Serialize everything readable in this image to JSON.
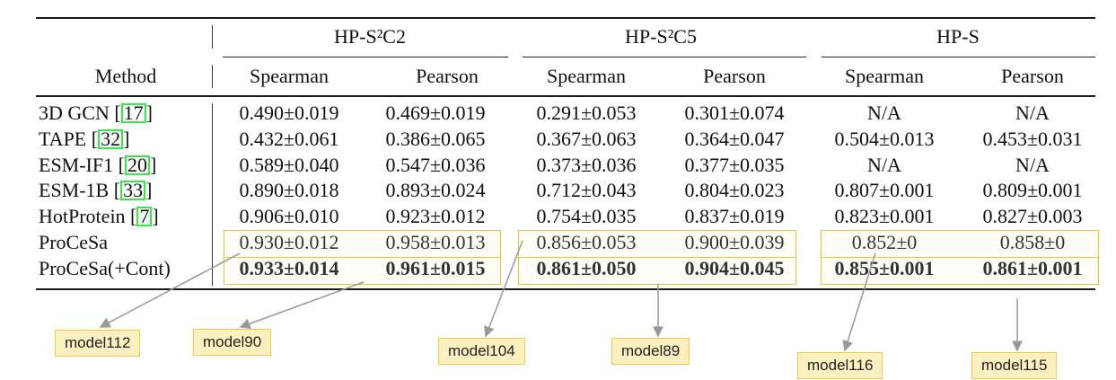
{
  "table": {
    "method_header": "Method",
    "groups": [
      "HP-S²C2",
      "HP-S²C5",
      "HP-S"
    ],
    "subheaders": [
      "Spearman",
      "Pearson",
      "Spearman",
      "Pearson",
      "Spearman",
      "Pearson"
    ],
    "rows": [
      {
        "name": "3D GCN [",
        "cite": "17",
        "suffix": "]",
        "values": [
          "0.490±0.019",
          "0.469±0.019",
          "0.291±0.053",
          "0.301±0.074",
          "N/A",
          "N/A"
        ],
        "bold": false
      },
      {
        "name": "TAPE [",
        "cite": "32",
        "suffix": "]",
        "values": [
          "0.432±0.061",
          "0.386±0.065",
          "0.367±0.063",
          "0.364±0.047",
          "0.504±0.013",
          "0.453±0.031"
        ],
        "bold": false
      },
      {
        "name": "ESM-IF1 [",
        "cite": "20",
        "suffix": "]",
        "values": [
          "0.589±0.040",
          "0.547±0.036",
          "0.373±0.036",
          "0.377±0.035",
          "N/A",
          "N/A"
        ],
        "bold": false
      },
      {
        "name": "ESM-1B [",
        "cite": "33",
        "suffix": "]",
        "values": [
          "0.890±0.018",
          "0.893±0.024",
          "0.712±0.043",
          "0.804±0.023",
          "0.807±0.001",
          "0.809±0.001"
        ],
        "bold": false
      },
      {
        "name": "HotProtein [",
        "cite": "7",
        "suffix": "]",
        "values": [
          "0.906±0.010",
          "0.923±0.012",
          "0.754±0.035",
          "0.837±0.019",
          "0.823±0.001",
          "0.827±0.003"
        ],
        "bold": false
      },
      {
        "name": "ProCeSa",
        "cite": "",
        "suffix": "",
        "values": [
          "0.930±0.012",
          "0.958±0.013",
          "0.856±0.053",
          "0.900±0.039",
          "0.852±0",
          "0.858±0"
        ],
        "bold": false
      },
      {
        "name": "ProCeSa(+Cont)",
        "cite": "",
        "suffix": "",
        "values": [
          "0.933±0.014",
          "0.961±0.015",
          "0.861±0.050",
          "0.904±0.045",
          "0.855±0.001",
          "0.861±0.001"
        ],
        "bold": true
      }
    ]
  },
  "annotations": [
    "model112",
    "model90",
    "model104",
    "model89",
    "model116",
    "model115"
  ],
  "colors": {
    "highlight_box": "#f0c238",
    "tag_fill": "#fdf0c0",
    "cite_box": "#37e84a",
    "arrow": "#999999"
  }
}
